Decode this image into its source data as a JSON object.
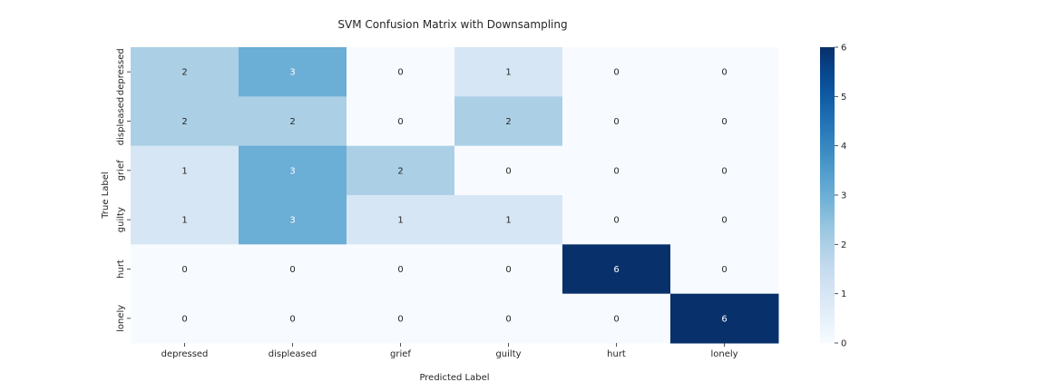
{
  "chart_data": {
    "type": "heatmap",
    "title": "SVM Confusion Matrix with Downsampling",
    "xlabel": "Predicted Label",
    "ylabel": "True Label",
    "x_categories": [
      "depressed",
      "displeased",
      "grief",
      "guilty",
      "hurt",
      "lonely"
    ],
    "y_categories": [
      "depressed",
      "displeased",
      "grief",
      "guilty",
      "hurt",
      "lonely"
    ],
    "values": [
      [
        2,
        3,
        0,
        1,
        0,
        0
      ],
      [
        2,
        2,
        0,
        2,
        0,
        0
      ],
      [
        1,
        3,
        2,
        0,
        0,
        0
      ],
      [
        1,
        3,
        1,
        1,
        0,
        0
      ],
      [
        0,
        0,
        0,
        0,
        6,
        0
      ],
      [
        0,
        0,
        0,
        0,
        0,
        6
      ]
    ],
    "colormap": "Blues",
    "vmin": 0,
    "vmax": 6,
    "colorbar_ticks": [
      0,
      1,
      2,
      3,
      4,
      5,
      6
    ],
    "annotations": true
  }
}
